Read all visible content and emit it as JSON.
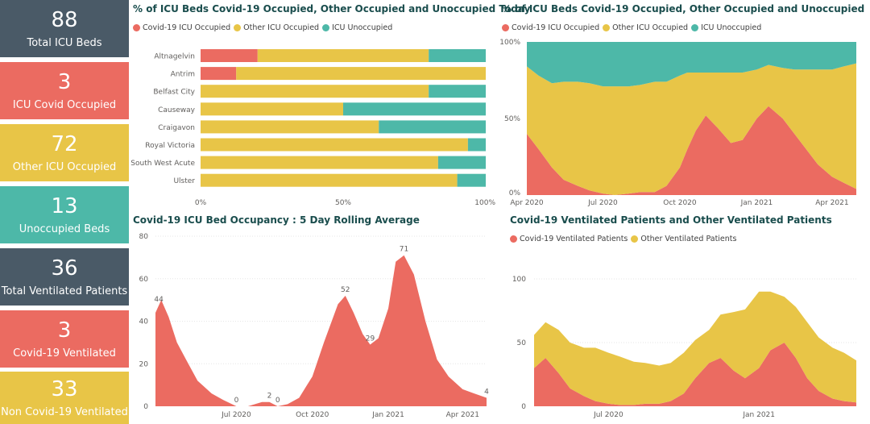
{
  "kpis": [
    {
      "value": "88",
      "label": "Total ICU Beds",
      "color": "#4a5a67"
    },
    {
      "value": "3",
      "label": "ICU Covid Occupied",
      "color": "#eb6b61"
    },
    {
      "value": "72",
      "label": "Other ICU Occupied",
      "color": "#e8c547"
    },
    {
      "value": "13",
      "label": "Unoccupied Beds",
      "color": "#4db8a8"
    },
    {
      "value": "36",
      "label": "Total Ventilated Patients",
      "color": "#4a5a67"
    },
    {
      "value": "3",
      "label": "Covid-19 Ventilated",
      "color": "#eb6b61"
    },
    {
      "value": "33",
      "label": "Non Covid-19 Ventilated",
      "color": "#e8c547"
    }
  ],
  "colors": {
    "covid": "#eb6b61",
    "other": "#e8c547",
    "unoccupied": "#4db8a8",
    "axis_text": "#605e5c",
    "grid": "#e6e6e6"
  },
  "legends": {
    "occupancy": [
      {
        "label": "Covid-19 ICU Occupied",
        "color": "#eb6b61"
      },
      {
        "label": "Other ICU Occupied",
        "color": "#e8c547"
      },
      {
        "label": "ICU Unoccupied",
        "color": "#4db8a8"
      }
    ],
    "ventilated": [
      {
        "label": "Covid-19 Ventilated Patients",
        "color": "#eb6b61"
      },
      {
        "label": "Other Ventilated Patients",
        "color": "#e8c547"
      }
    ]
  },
  "chart_data": [
    {
      "type": "bar",
      "orientation": "horizontal-stacked-100",
      "title": "% of ICU Beds Covid-19 Occupied, Other Occupied and Unoccupied Today",
      "categories": [
        "Altnagelvin",
        "Antrim",
        "Belfast City",
        "Causeway",
        "Craigavon",
        "Royal Victoria",
        "South West Acute",
        "Ulster"
      ],
      "series": [
        {
          "name": "Covid-19 ICU Occupied",
          "values": [
            20,
            12.5,
            0,
            0,
            0,
            0,
            0,
            0
          ]
        },
        {
          "name": "Other ICU Occupied",
          "values": [
            60,
            87.5,
            80,
            50,
            62.5,
            93.75,
            83.3,
            90
          ]
        },
        {
          "name": "ICU Unoccupied",
          "values": [
            20,
            0,
            20,
            50,
            37.5,
            6.25,
            16.7,
            10
          ]
        }
      ],
      "xticks": [
        "0%",
        "50%",
        "100%"
      ],
      "xlim": [
        0,
        100
      ],
      "legend": "top-left"
    },
    {
      "type": "area",
      "stacking": "stacked-100",
      "title": "% of ICU Beds Covid-19 Occupied, Other Occupied and Unoccupied",
      "x": [
        "2020-04-01",
        "2020-04-15",
        "2020-05-01",
        "2020-05-15",
        "2020-06-01",
        "2020-06-15",
        "2020-07-01",
        "2020-07-15",
        "2020-08-01",
        "2020-08-15",
        "2020-09-01",
        "2020-09-15",
        "2020-10-01",
        "2020-10-10",
        "2020-10-20",
        "2020-11-01",
        "2020-11-15",
        "2020-12-01",
        "2020-12-15",
        "2021-01-01",
        "2021-01-15",
        "2021-02-01",
        "2021-02-15",
        "2021-03-01",
        "2021-03-15",
        "2021-04-01",
        "2021-04-15",
        "2021-04-30"
      ],
      "series": [
        {
          "name": "Covid-19 ICU Occupied",
          "values": [
            40,
            30,
            18,
            10,
            6,
            3,
            1,
            0,
            1,
            2,
            2,
            6,
            18,
            30,
            42,
            52,
            44,
            34,
            36,
            50,
            58,
            50,
            40,
            30,
            20,
            12,
            8,
            4
          ]
        },
        {
          "name": "Other ICU Occupied",
          "values": [
            44,
            48,
            55,
            64,
            68,
            70,
            70,
            71,
            70,
            70,
            72,
            68,
            60,
            50,
            38,
            28,
            36,
            46,
            44,
            32,
            27,
            33,
            42,
            52,
            62,
            70,
            76,
            82
          ]
        },
        {
          "name": "ICU Unoccupied",
          "values": [
            16,
            22,
            27,
            26,
            26,
            27,
            29,
            29,
            29,
            28,
            26,
            26,
            22,
            20,
            20,
            20,
            20,
            20,
            20,
            18,
            15,
            17,
            18,
            18,
            18,
            18,
            16,
            14
          ]
        }
      ],
      "xticks": [
        "Apr 2020",
        "Jul 2020",
        "Oct 2020",
        "Jan 2021",
        "Apr 2021"
      ],
      "yticks": [
        "0%",
        "50%",
        "100%"
      ],
      "ylim": [
        0,
        100
      ],
      "legend": "top-left"
    },
    {
      "type": "area",
      "title": "Covid-19 ICU Bed Occupancy : 5 Day Rolling Average",
      "x": [
        "2020-03-25",
        "2020-04-01",
        "2020-04-10",
        "2020-04-20",
        "2020-05-01",
        "2020-05-15",
        "2020-06-01",
        "2020-06-15",
        "2020-07-01",
        "2020-07-15",
        "2020-08-01",
        "2020-08-10",
        "2020-08-20",
        "2020-09-01",
        "2020-09-15",
        "2020-10-01",
        "2020-10-15",
        "2020-11-01",
        "2020-11-10",
        "2020-11-20",
        "2020-12-01",
        "2020-12-10",
        "2020-12-20",
        "2021-01-01",
        "2021-01-10",
        "2021-01-20",
        "2021-02-01",
        "2021-02-15",
        "2021-03-01",
        "2021-03-15",
        "2021-04-01",
        "2021-04-15",
        "2021-04-30"
      ],
      "series": [
        {
          "name": "Covid-19 ICU Occupied",
          "values": [
            44,
            50,
            42,
            30,
            22,
            12,
            6,
            3,
            0,
            0,
            2,
            2,
            0,
            1,
            4,
            14,
            30,
            48,
            52,
            44,
            34,
            29,
            32,
            46,
            68,
            71,
            62,
            40,
            22,
            14,
            8,
            6,
            4
          ]
        }
      ],
      "data_labels": [
        {
          "x": "2020-03-29",
          "value": "44"
        },
        {
          "x": "2020-07-01",
          "value": "0"
        },
        {
          "x": "2020-08-10",
          "value": "2"
        },
        {
          "x": "2020-08-20",
          "value": "0"
        },
        {
          "x": "2020-11-10",
          "value": "52"
        },
        {
          "x": "2020-12-10",
          "value": "29"
        },
        {
          "x": "2021-01-20",
          "value": "71"
        },
        {
          "x": "2021-04-30",
          "value": "4"
        }
      ],
      "xticks": [
        "Jul 2020",
        "Oct 2020",
        "Jan 2021",
        "Apr 2021"
      ],
      "yticks": [
        "0",
        "20",
        "40",
        "60",
        "80"
      ],
      "ylim": [
        0,
        80
      ]
    },
    {
      "type": "area",
      "stacking": "stacked",
      "title": "Covid-19 Ventilated Patients and Other Ventilated Patients",
      "x": [
        "2020-04-01",
        "2020-04-15",
        "2020-05-01",
        "2020-05-15",
        "2020-06-01",
        "2020-06-15",
        "2020-07-01",
        "2020-07-15",
        "2020-08-01",
        "2020-08-15",
        "2020-09-01",
        "2020-09-15",
        "2020-10-01",
        "2020-10-15",
        "2020-11-01",
        "2020-11-15",
        "2020-12-01",
        "2020-12-15",
        "2021-01-01",
        "2021-01-15",
        "2021-02-01",
        "2021-02-15",
        "2021-03-01",
        "2021-03-15",
        "2021-04-01",
        "2021-04-15",
        "2021-04-30"
      ],
      "series": [
        {
          "name": "Covid-19 Ventilated Patients",
          "values": [
            30,
            38,
            26,
            14,
            8,
            4,
            2,
            1,
            1,
            2,
            2,
            4,
            10,
            22,
            34,
            38,
            28,
            22,
            30,
            44,
            50,
            38,
            22,
            12,
            6,
            4,
            3
          ]
        },
        {
          "name": "Other Ventilated Patients",
          "values": [
            26,
            28,
            34,
            36,
            38,
            42,
            40,
            38,
            34,
            32,
            30,
            30,
            32,
            30,
            26,
            34,
            46,
            54,
            60,
            46,
            36,
            40,
            44,
            42,
            40,
            38,
            33
          ]
        }
      ],
      "xticks": [
        "Jul 2020",
        "Jan 2021"
      ],
      "yticks": [
        "0",
        "50",
        "100"
      ],
      "ylim": [
        0,
        100
      ],
      "legend": "top-left"
    }
  ]
}
